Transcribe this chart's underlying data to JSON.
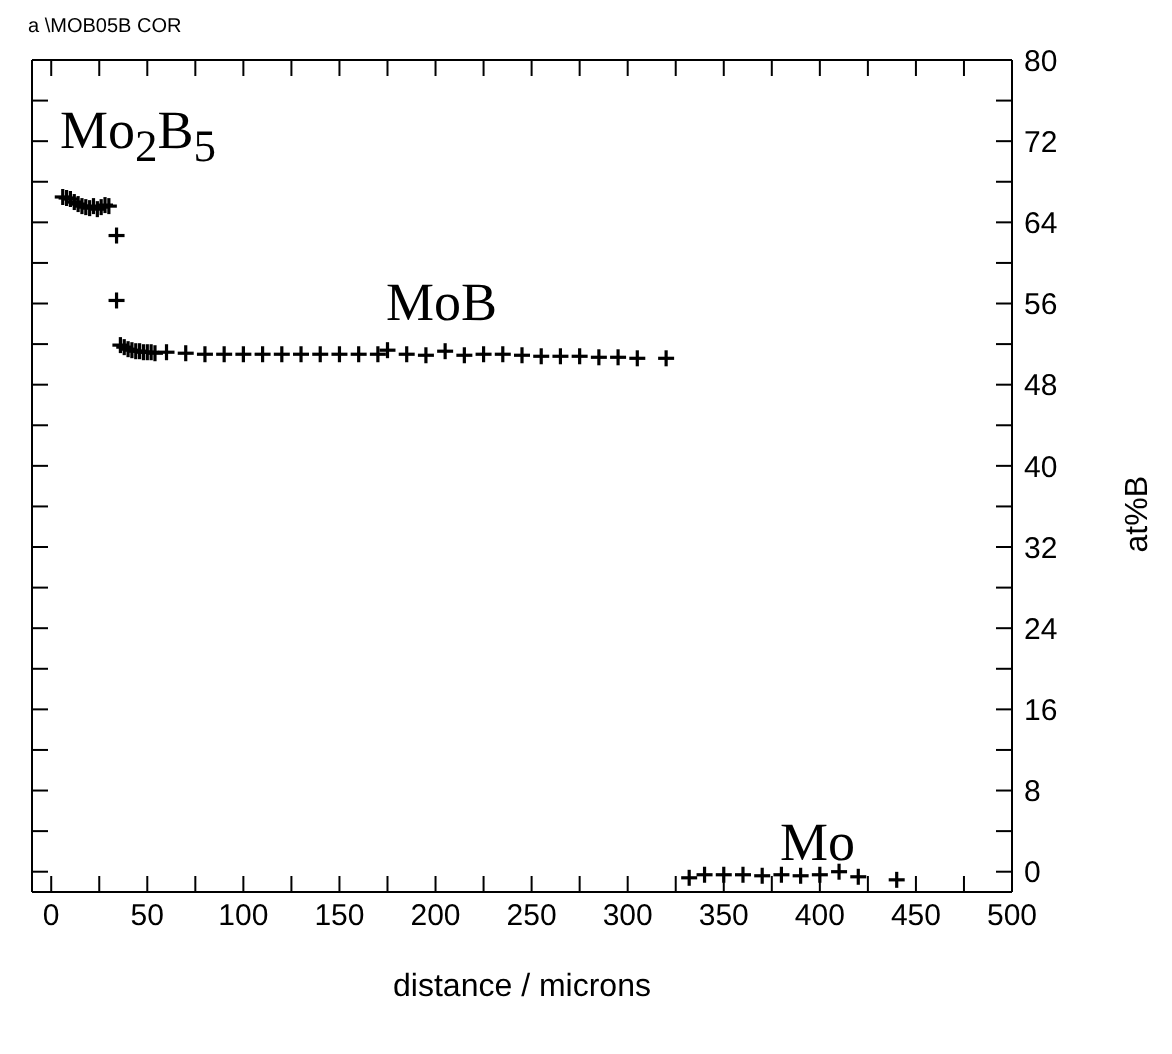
{
  "chart_data": {
    "type": "scatter",
    "title": "a \\MOB05B COR",
    "xlabel": "distance / microns",
    "ylabel": "at%B",
    "x": [
      6,
      8,
      10,
      12,
      14,
      16,
      18,
      20,
      22,
      24,
      26,
      28,
      30,
      34,
      34,
      36,
      38,
      40,
      42,
      44,
      46,
      48,
      50,
      52,
      54,
      60,
      70,
      80,
      90,
      100,
      110,
      120,
      130,
      140,
      150,
      160,
      170,
      175,
      185,
      195,
      205,
      215,
      225,
      235,
      245,
      255,
      265,
      275,
      285,
      295,
      305,
      320,
      332,
      340,
      350,
      360,
      370,
      380,
      390,
      400,
      410,
      420,
      440
    ],
    "values": [
      66.5,
      66.4,
      66.3,
      66,
      65.8,
      65.6,
      65.5,
      65.4,
      65.6,
      65.3,
      65.5,
      65.7,
      65.6,
      62.7,
      56.3,
      51.9,
      51.7,
      51.5,
      51.4,
      51.3,
      51.3,
      51.2,
      51.2,
      51.2,
      51.1,
      51.2,
      51.1,
      51,
      51,
      51,
      51,
      51,
      51,
      51,
      51,
      51,
      51,
      51.4,
      51,
      50.9,
      51.3,
      50.9,
      51,
      51,
      50.9,
      50.8,
      50.8,
      50.8,
      50.7,
      50.7,
      50.6,
      50.6,
      -0.6,
      -0.3,
      -0.3,
      -0.3,
      -0.4,
      -0.3,
      -0.4,
      -0.3,
      0,
      -0.5,
      -0.8
    ],
    "color": "#000000",
    "marker": "cross",
    "xlim": [
      -10,
      500
    ],
    "xticks": [
      0,
      {
        "value": 25,
        "label": null
      },
      50,
      {
        "value": 75,
        "label": null
      },
      100,
      {
        "value": 125,
        "label": null
      },
      150,
      {
        "value": 175,
        "label": null
      },
      200,
      {
        "value": 225,
        "label": null
      },
      250,
      {
        "value": 275,
        "label": null
      },
      300,
      {
        "value": 325,
        "label": null
      },
      350,
      {
        "value": 375,
        "label": null
      },
      400,
      {
        "value": 425,
        "label": null
      },
      450,
      {
        "value": 475,
        "label": null
      },
      500
    ],
    "ylim": [
      -2,
      80
    ],
    "yticks": [
      0,
      {
        "value": 4,
        "label": null
      },
      8,
      {
        "value": 12,
        "label": null
      },
      16,
      {
        "value": 20,
        "label": null
      },
      24,
      {
        "value": 28,
        "label": null
      },
      32,
      {
        "value": 36,
        "label": null
      },
      40,
      {
        "value": 44,
        "label": null
      },
      48,
      {
        "value": 52,
        "label": null
      },
      56,
      {
        "value": 60,
        "label": null
      },
      64,
      {
        "value": 68,
        "label": null
      },
      72,
      {
        "value": 76,
        "label": null
      },
      80
    ],
    "annotations": [
      "Mo$_{2}$B$_{5}$",
      "MoB",
      "Mo"
    ]
  }
}
